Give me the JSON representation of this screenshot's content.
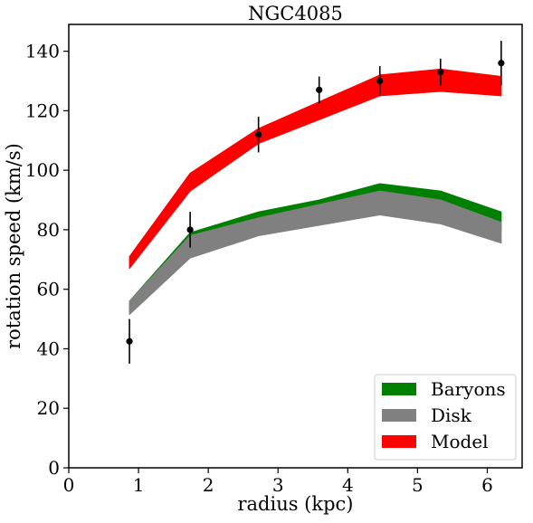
{
  "chart_data": {
    "type": "line",
    "title": "NGC4085",
    "xlabel": "radius (kpc)",
    "ylabel": "rotation speed (km/s)",
    "xlim": [
      0,
      6.5
    ],
    "ylim": [
      0,
      149
    ],
    "xticks": [
      0,
      1,
      2,
      3,
      4,
      5,
      6
    ],
    "yticks": [
      0,
      20,
      40,
      60,
      80,
      100,
      120,
      140
    ],
    "grid": false,
    "legend_placement": "lower-right",
    "x": [
      0.87,
      1.74,
      2.72,
      3.59,
      4.46,
      5.33,
      6.2
    ],
    "series": [
      {
        "name": "Baryons",
        "color": "#008000",
        "style": "band",
        "lower": [
          52,
          72,
          79,
          83.5,
          88,
          86,
          80
        ],
        "upper": [
          56,
          79,
          86,
          90,
          95.5,
          93,
          86
        ]
      },
      {
        "name": "Disk",
        "color": "#808080",
        "style": "band",
        "lower": [
          51.5,
          70.5,
          78,
          81.5,
          85,
          82,
          75.5
        ],
        "upper": [
          56,
          78,
          84,
          88.5,
          93,
          90,
          82.5
        ]
      },
      {
        "name": "Model",
        "color": "#ff0000",
        "style": "band",
        "lower": [
          67,
          93,
          109,
          117,
          125,
          126.5,
          125
        ],
        "upper": [
          71,
          99,
          114,
          123,
          132,
          134,
          131.5
        ]
      }
    ],
    "observations": {
      "color": "#000000",
      "style": "errorbar",
      "y": [
        42.5,
        80,
        112,
        127,
        130,
        133,
        136
      ],
      "err": [
        7.5,
        6,
        6,
        4.5,
        5,
        4.5,
        7.5
      ]
    }
  }
}
